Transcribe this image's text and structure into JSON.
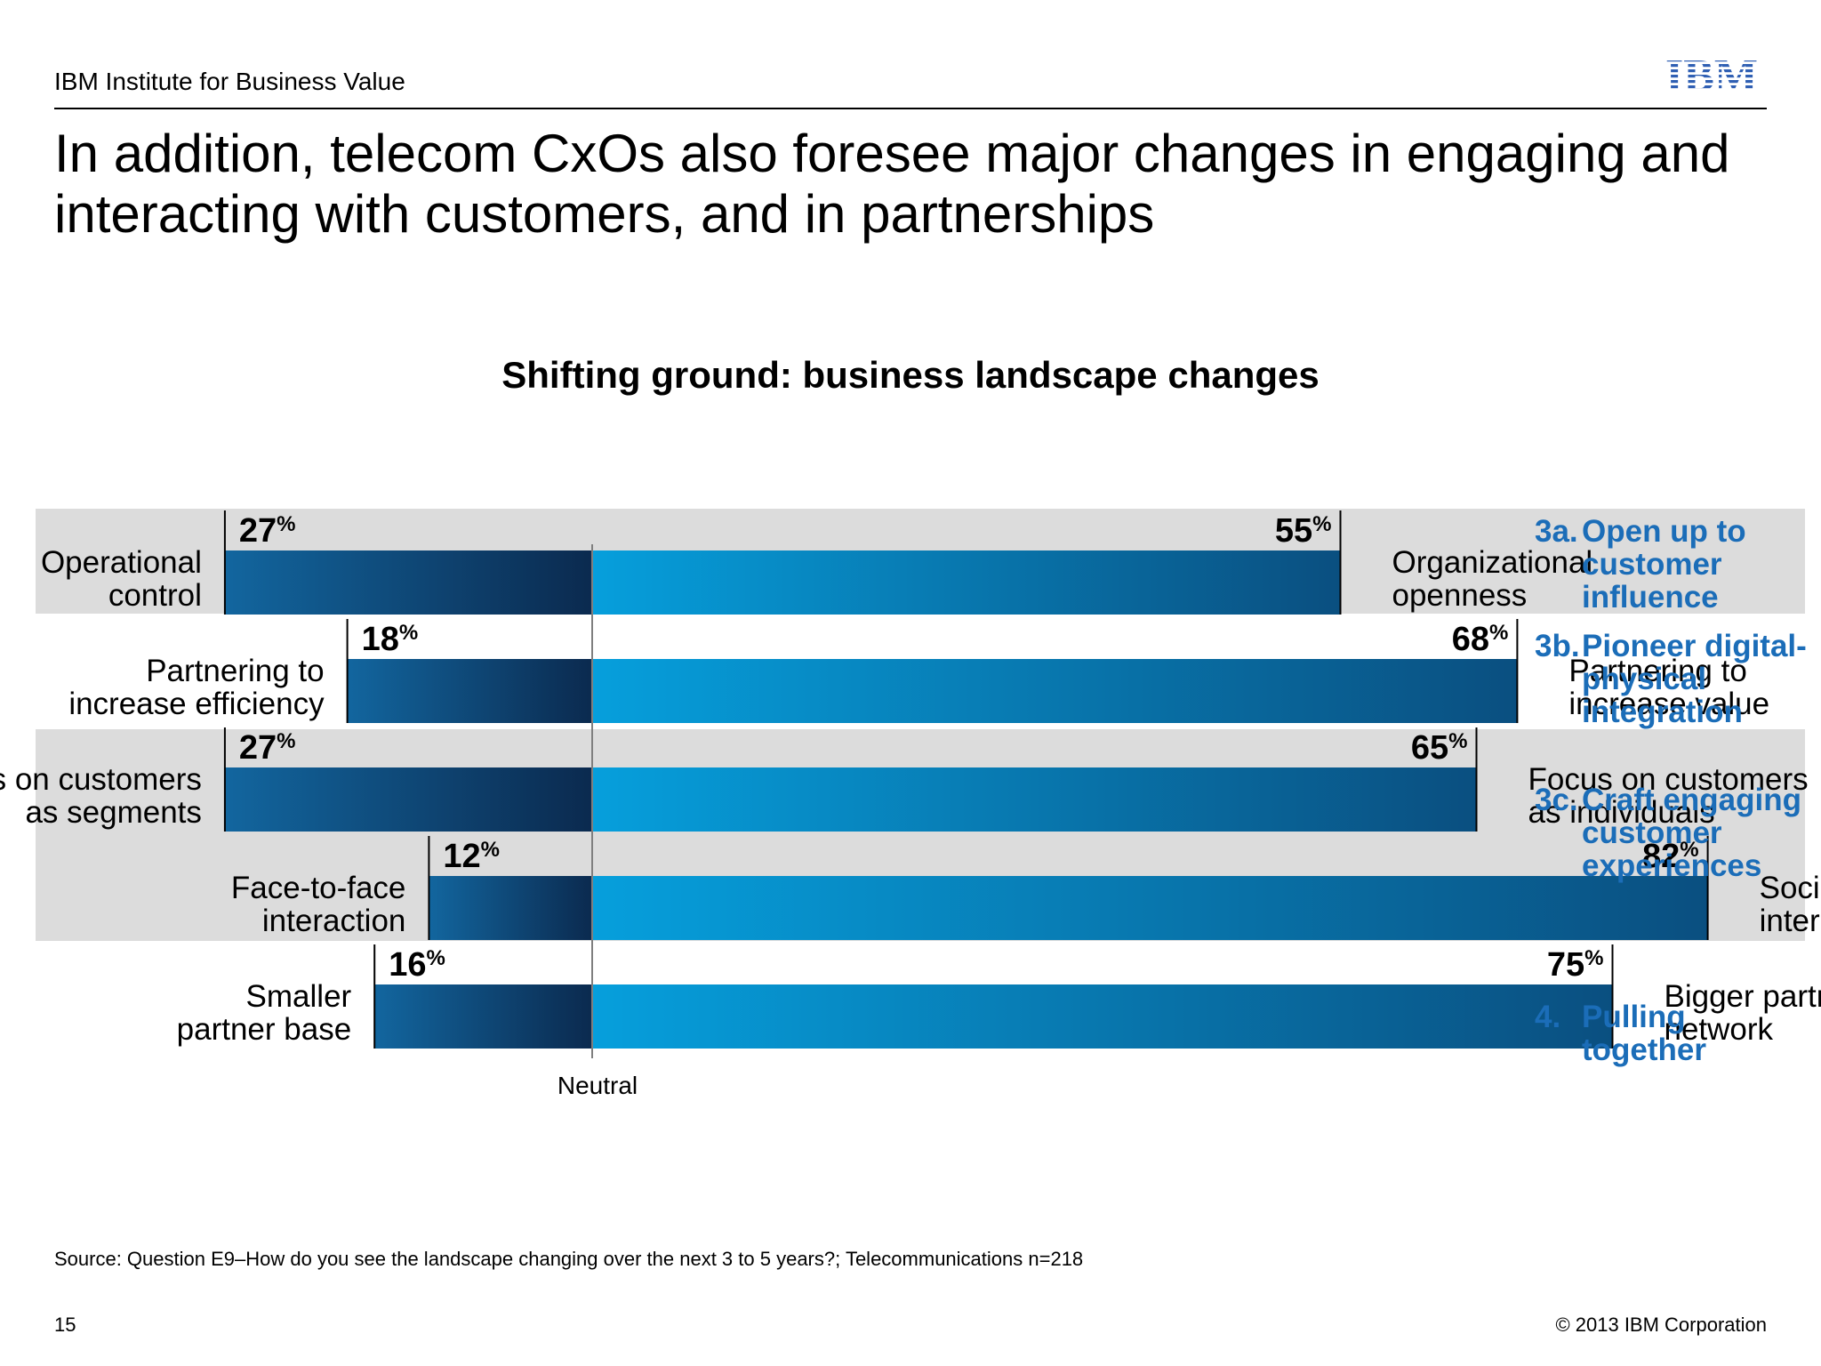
{
  "header": {
    "org": "IBM Institute for Business Value",
    "logo_text": "IBM",
    "title": "In addition, telecom CxOs also foresee major changes in engaging and interacting with customers, and in partnerships"
  },
  "chart_data": {
    "type": "bar",
    "title": "Shifting ground: business landscape changes",
    "neutral_label": "Neutral",
    "unit": "%",
    "rows": [
      {
        "left_label": [
          "Operational",
          "control"
        ],
        "left_value": 27,
        "right_label": [
          "Organizational",
          "openness"
        ],
        "right_value": 55
      },
      {
        "left_label": [
          "Partnering to",
          "increase efficiency"
        ],
        "left_value": 18,
        "right_label": [
          "Partnering to",
          "increase value"
        ],
        "right_value": 68
      },
      {
        "left_label": [
          "Focus on customers",
          "as segments"
        ],
        "left_value": 27,
        "right_label": [
          "Focus on customers",
          "as individuals"
        ],
        "right_value": 65
      },
      {
        "left_label": [
          "Face-to-face",
          "interaction"
        ],
        "left_value": 12,
        "right_label": [
          "Social/digital",
          "interaction"
        ],
        "right_value": 82
      },
      {
        "left_label": [
          "Smaller",
          "partner base"
        ],
        "left_value": 16,
        "right_label": [
          "Bigger partner",
          "network"
        ],
        "right_value": 75
      }
    ],
    "themes": [
      {
        "num": "3a.",
        "lines": [
          "Open up to",
          "customer",
          "influence"
        ]
      },
      {
        "num": "3b.",
        "lines": [
          "Pioneer digital-",
          "physical",
          "integration"
        ]
      },
      {
        "num": "3c.",
        "lines": [
          "Craft engaging",
          "customer",
          "experiences"
        ]
      },
      {
        "num": "4.",
        "lines": [
          "Pulling",
          "together"
        ]
      }
    ],
    "colors": {
      "left_bar": "#0b3d6b",
      "right_bar": "#0a9ad8",
      "band": "#dcdcdc",
      "theme_text": "#1b6db8"
    }
  },
  "footer": {
    "source": "Source:  Question E9–How do you see the landscape changing over the next 3 to 5 years?;  Telecommunications n=218",
    "page": "15",
    "copyright": "© 2013 IBM Corporation"
  }
}
